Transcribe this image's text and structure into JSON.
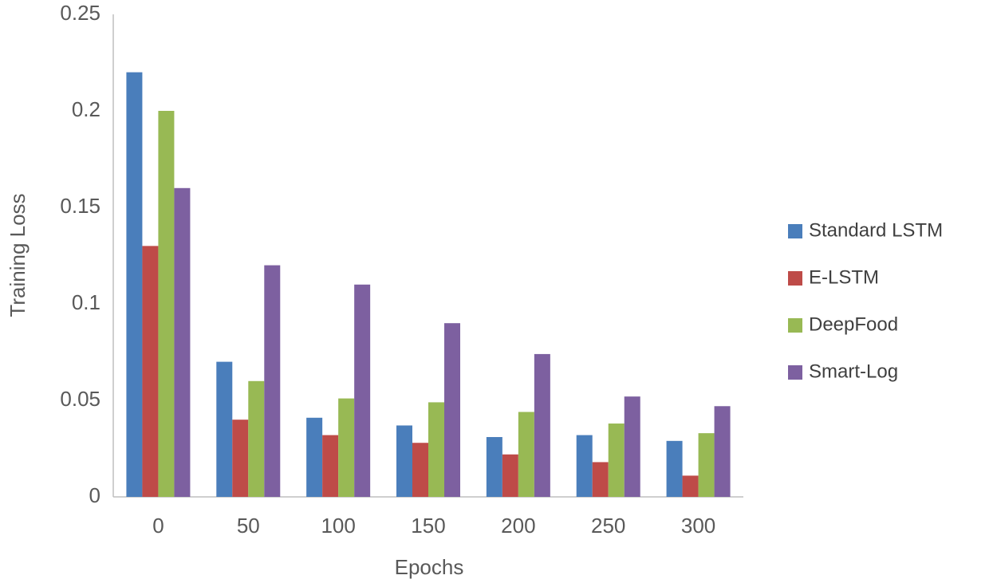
{
  "chart_data": {
    "type": "bar",
    "x_label": "Epochs",
    "y_label": "Training Loss",
    "categories": [
      "0",
      "50",
      "100",
      "150",
      "200",
      "250",
      "300"
    ],
    "series": [
      {
        "name": "Standard LSTM",
        "color": "#4a7ebb",
        "values": [
          0.22,
          0.07,
          0.041,
          0.037,
          0.031,
          0.032,
          0.029
        ]
      },
      {
        "name": "E-LSTM",
        "color": "#be4b48",
        "values": [
          0.13,
          0.04,
          0.032,
          0.028,
          0.022,
          0.018,
          0.011
        ]
      },
      {
        "name": "DeepFood",
        "color": "#98b954",
        "values": [
          0.2,
          0.06,
          0.051,
          0.049,
          0.044,
          0.038,
          0.033
        ]
      },
      {
        "name": "Smart-Log",
        "color": "#7d60a0",
        "values": [
          0.16,
          0.12,
          0.11,
          0.09,
          0.074,
          0.052,
          0.047
        ]
      }
    ],
    "ylim": [
      0,
      0.25
    ],
    "yticks": [
      0,
      0.05,
      0.1,
      0.15,
      0.2,
      0.25
    ],
    "grid": false,
    "legend": "right"
  }
}
